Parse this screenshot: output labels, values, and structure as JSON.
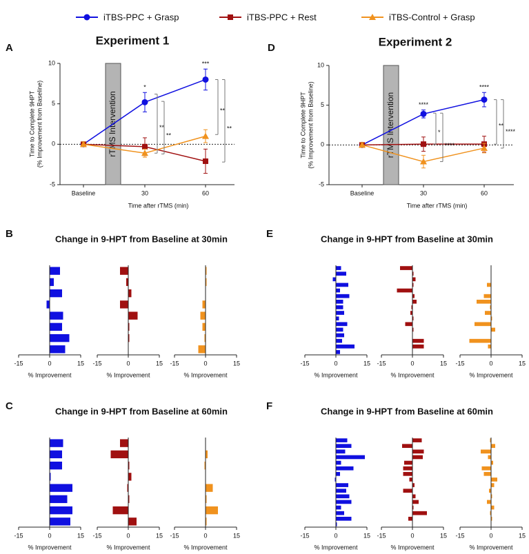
{
  "chart_data": [
    {
      "type": "line",
      "label": "A",
      "title": "Experiment 1",
      "ylabel": [
        "Time to Complete 9HPT",
        "(% Improvement from Baseline)"
      ],
      "xlabel": "Time after rTMS (min)",
      "box_label": "rTMS Intervention",
      "categories": [
        "Baseline",
        "30",
        "60"
      ],
      "ylim": [
        -5,
        10
      ],
      "yticks": [
        -5,
        0,
        5,
        10
      ],
      "series": [
        {
          "name": "iTBS-PPC + Grasp",
          "color": "#1010e0",
          "marker": "circle",
          "values": [
            0,
            5.2,
            8.0
          ],
          "errors": [
            0.3,
            1.2,
            1.3
          ],
          "stars": [
            null,
            "*",
            "***"
          ]
        },
        {
          "name": "iTBS-PPC + Rest",
          "color": "#a01010",
          "marker": "square",
          "values": [
            0,
            -0.3,
            -2.1
          ],
          "errors": [
            0.3,
            1.1,
            1.5
          ],
          "stars": [
            null,
            null,
            null
          ]
        },
        {
          "name": "iTBS-Control + Grasp",
          "color": "#f0921e",
          "marker": "triangle",
          "values": [
            0,
            -1.1,
            1.0
          ],
          "errors": [
            0.3,
            0.5,
            0.8
          ],
          "stars": [
            null,
            null,
            null
          ]
        }
      ],
      "brackets": [
        {
          "label": "**",
          "category": "30",
          "from": 6.2,
          "to": -1.1
        },
        {
          "label": "**",
          "category": "30",
          "from": 5.3,
          "to": -1.2
        },
        {
          "label": "**",
          "category": "60",
          "from": 8.0,
          "to": 1.2
        },
        {
          "label": "**",
          "category": "60",
          "from": 8.0,
          "to": -2.2
        }
      ]
    },
    {
      "type": "line",
      "label": "D",
      "title": "Experiment 2",
      "ylabel": [
        "Time to Complete 9HPT",
        "(% Improvement from Baseline)"
      ],
      "xlabel": "Time after rTMS (min)",
      "box_label": "rTMS Intervention",
      "categories": [
        "Baseline",
        "30",
        "60"
      ],
      "ylim": [
        -5,
        10
      ],
      "yticks": [
        -5,
        0,
        5,
        10
      ],
      "series": [
        {
          "color": "#1010e0",
          "marker": "circle",
          "values": [
            0,
            3.9,
            5.7
          ],
          "errors": [
            0.3,
            0.5,
            0.9
          ],
          "stars": [
            null,
            "****",
            "****"
          ]
        },
        {
          "color": "#a01010",
          "marker": "square",
          "values": [
            0,
            0.1,
            0.1
          ],
          "errors": [
            0.3,
            0.9,
            1.0
          ],
          "stars": [
            null,
            null,
            null
          ]
        },
        {
          "color": "#f0921e",
          "marker": "triangle",
          "values": [
            0,
            -2.1,
            -0.4
          ],
          "errors": [
            0.3,
            0.8,
            0.6
          ],
          "stars": [
            null,
            null,
            null
          ]
        }
      ],
      "brackets": [
        {
          "label": "*",
          "category": "30",
          "from": 4.0,
          "to": 0.1
        },
        {
          "label": "****",
          "category": "30",
          "from": 4.0,
          "to": -2.1
        },
        {
          "label": "**",
          "category": "60",
          "from": 5.7,
          "to": 0.1
        },
        {
          "label": "****",
          "category": "60",
          "from": 5.7,
          "to": -0.4
        }
      ]
    },
    {
      "type": "hbar",
      "label": "B",
      "title": "Change in 9-HPT from Baseline at 30min",
      "xlabel": "% Improvement",
      "xlim": [
        -15,
        15
      ],
      "xticks": [
        -15,
        0,
        15
      ],
      "series": [
        {
          "color": "#1010e0",
          "values": [
            5,
            2,
            6,
            -1.5,
            6.5,
            6,
            9.5,
            7.5
          ]
        },
        {
          "color": "#a01010",
          "values": [
            -4,
            -1,
            1.5,
            -4,
            4.5,
            0.5,
            0.5,
            0
          ]
        },
        {
          "color": "#f0921e",
          "values": [
            0.5,
            0.5,
            0,
            -1.5,
            -2.5,
            -1.5,
            -0.5,
            -3.5
          ]
        }
      ]
    },
    {
      "type": "hbar",
      "label": "C",
      "title": "Change in 9-HPT from Baseline at 60min",
      "xlabel": "% Improvement",
      "xlim": [
        -15,
        15
      ],
      "xticks": [
        -15,
        0,
        15
      ],
      "series": [
        {
          "color": "#1010e0",
          "values": [
            6.5,
            6,
            6,
            0.5,
            11,
            8.5,
            11,
            10
          ]
        },
        {
          "color": "#a01010",
          "values": [
            -4,
            -8.5,
            0.5,
            1.5,
            -0.5,
            0.5,
            -7.5,
            4
          ]
        },
        {
          "color": "#f0921e",
          "values": [
            0,
            1,
            -0.5,
            0,
            3.5,
            0.5,
            6,
            0.5
          ]
        }
      ]
    },
    {
      "type": "hbar",
      "label": "E",
      "title": "Change in 9-HPT from Baseline at 30min",
      "xlabel": "% Improvement",
      "xlim": [
        -15,
        15
      ],
      "xticks": [
        -15,
        0,
        15
      ],
      "series": [
        {
          "color": "#1010e0",
          "values": [
            2.5,
            5,
            -1.5,
            6,
            2,
            6.5,
            3.5,
            3.5,
            4,
            1.5,
            5.5,
            3.5,
            4,
            3,
            9,
            2
          ]
        },
        {
          "color": "#a01010",
          "values": [
            -6,
            0.5,
            1.5,
            0.5,
            -7.5,
            1,
            2,
            -0.5,
            -1,
            0.5,
            -3.5,
            0.5,
            0,
            5.5,
            5.5,
            0
          ]
        },
        {
          "color": "#f0921e",
          "values": [
            0,
            0,
            0,
            -2,
            0,
            -3.5,
            -7,
            -0.5,
            -3,
            0.5,
            -8,
            2,
            0,
            -10.5,
            -1.5,
            0
          ]
        }
      ]
    },
    {
      "type": "hbar",
      "label": "F",
      "title": "Change in 9-HPT from Baseline at 60min",
      "xlabel": "% Improvement",
      "xlim": [
        -15,
        15
      ],
      "xticks": [
        -15,
        0,
        15
      ],
      "series": [
        {
          "color": "#1010e0",
          "values": [
            5.5,
            7.5,
            4.5,
            14,
            2.5,
            8.5,
            2,
            -0.5,
            6,
            5,
            6.5,
            7.5,
            2.5,
            4,
            7.5,
            0.5
          ]
        },
        {
          "color": "#a01010",
          "values": [
            4.5,
            -5,
            5.5,
            5,
            -4,
            -4.5,
            -4.5,
            -1.5,
            1,
            -4.5,
            1.5,
            3,
            0.5,
            7,
            -2,
            0
          ]
        },
        {
          "color": "#f0921e",
          "values": [
            -0.5,
            2,
            -5,
            -1.5,
            1,
            -4.5,
            -3.5,
            3,
            1.5,
            -1,
            0.5,
            -2,
            1.5,
            -0.5,
            0.5,
            0
          ]
        }
      ]
    }
  ]
}
